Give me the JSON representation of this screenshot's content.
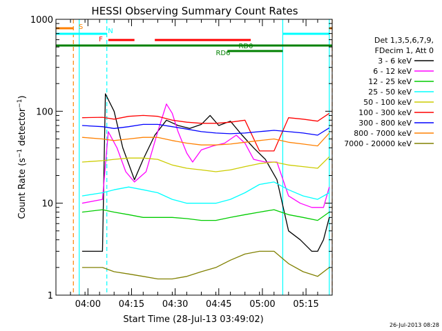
{
  "chart_data": {
    "type": "line",
    "title": "HESSI Observing Summary Count Rates",
    "xlabel": "Start Time (28-Jul-13 03:49:02)",
    "ylabel": "Count Rate (s⁻¹ detector⁻¹)",
    "ylabel_main": "Count Rate (s",
    "ylabel_sup1": "−1",
    "ylabel_mid": " detector",
    "ylabel_sup2": "−1",
    "ylabel_end": ")",
    "y_scale": "log",
    "ylim": [
      1,
      1000
    ],
    "xlim": [
      0,
      95
    ],
    "x_ticks": [
      {
        "t": 11,
        "label": "04:00"
      },
      {
        "t": 26,
        "label": "04:15"
      },
      {
        "t": 41,
        "label": "04:30"
      },
      {
        "t": 56,
        "label": "04:45"
      },
      {
        "t": 71,
        "label": "05:00"
      },
      {
        "t": 86,
        "label": "05:15"
      }
    ],
    "y_ticks": [
      {
        "v": 1,
        "label": "1"
      },
      {
        "v": 10,
        "label": "10"
      },
      {
        "v": 100,
        "label": "100"
      },
      {
        "v": 1000,
        "label": "1000"
      }
    ],
    "legend": {
      "header1": "Det 1,3,5,6,7,9,",
      "header2": "FDecim 1, Att 0"
    },
    "series": [
      {
        "name": "3 - 6 keV",
        "color": "#000000",
        "values": [
          [
            9,
            3
          ],
          [
            16,
            3
          ],
          [
            17,
            155
          ],
          [
            20,
            100
          ],
          [
            23,
            40
          ],
          [
            27,
            18
          ],
          [
            30,
            30
          ],
          [
            34,
            55
          ],
          [
            38,
            80
          ],
          [
            42,
            70
          ],
          [
            46,
            65
          ],
          [
            50,
            72
          ],
          [
            53,
            90
          ],
          [
            56,
            70
          ],
          [
            60,
            78
          ],
          [
            64,
            55
          ],
          [
            68,
            40
          ],
          [
            72,
            30
          ],
          [
            76,
            18
          ],
          [
            80,
            5
          ],
          [
            84,
            4
          ],
          [
            88,
            3
          ],
          [
            90,
            3
          ],
          [
            92,
            4
          ],
          [
            94,
            7
          ]
        ]
      },
      {
        "name": "6 - 12 keV",
        "color": "#ff00ff",
        "values": [
          [
            9,
            10
          ],
          [
            16,
            11
          ],
          [
            18,
            60
          ],
          [
            21,
            40
          ],
          [
            24,
            22
          ],
          [
            27,
            17
          ],
          [
            31,
            22
          ],
          [
            35,
            60
          ],
          [
            38,
            120
          ],
          [
            40,
            95
          ],
          [
            42,
            60
          ],
          [
            45,
            35
          ],
          [
            47,
            28
          ],
          [
            50,
            38
          ],
          [
            54,
            42
          ],
          [
            58,
            45
          ],
          [
            62,
            55
          ],
          [
            65,
            45
          ],
          [
            68,
            30
          ],
          [
            72,
            28
          ],
          [
            76,
            28
          ],
          [
            80,
            12
          ],
          [
            84,
            10
          ],
          [
            88,
            9
          ],
          [
            92,
            9
          ],
          [
            94,
            15
          ]
        ]
      },
      {
        "name": "12 - 25 keV",
        "color": "#00cc00",
        "values": [
          [
            9,
            8
          ],
          [
            16,
            8.5
          ],
          [
            20,
            8
          ],
          [
            25,
            7.5
          ],
          [
            30,
            7
          ],
          [
            35,
            7
          ],
          [
            40,
            7
          ],
          [
            45,
            6.8
          ],
          [
            50,
            6.5
          ],
          [
            55,
            6.5
          ],
          [
            60,
            7
          ],
          [
            65,
            7.5
          ],
          [
            70,
            8
          ],
          [
            75,
            8.5
          ],
          [
            80,
            7.5
          ],
          [
            85,
            7
          ],
          [
            90,
            6.5
          ],
          [
            94,
            8
          ]
        ]
      },
      {
        "name": "25 - 50 keV",
        "color": "#00ffff",
        "values": [
          [
            9,
            12
          ],
          [
            16,
            13
          ],
          [
            20,
            14
          ],
          [
            25,
            15
          ],
          [
            30,
            14
          ],
          [
            35,
            13
          ],
          [
            40,
            11
          ],
          [
            45,
            10
          ],
          [
            50,
            10
          ],
          [
            55,
            10
          ],
          [
            60,
            11
          ],
          [
            65,
            13
          ],
          [
            70,
            16
          ],
          [
            75,
            17
          ],
          [
            80,
            14
          ],
          [
            85,
            12
          ],
          [
            90,
            11
          ],
          [
            94,
            13
          ]
        ]
      },
      {
        "name": "50 - 100 keV",
        "color": "#cccc00",
        "values": [
          [
            9,
            28
          ],
          [
            16,
            29
          ],
          [
            20,
            30
          ],
          [
            25,
            31
          ],
          [
            30,
            31
          ],
          [
            35,
            30
          ],
          [
            40,
            26
          ],
          [
            45,
            24
          ],
          [
            50,
            23
          ],
          [
            55,
            22
          ],
          [
            60,
            23
          ],
          [
            65,
            25
          ],
          [
            70,
            27
          ],
          [
            75,
            28
          ],
          [
            80,
            26
          ],
          [
            85,
            25
          ],
          [
            90,
            24
          ],
          [
            94,
            32
          ]
        ]
      },
      {
        "name": "100 - 300 keV",
        "color": "#ff0000",
        "values": [
          [
            9,
            85
          ],
          [
            16,
            86
          ],
          [
            20,
            82
          ],
          [
            25,
            88
          ],
          [
            30,
            90
          ],
          [
            35,
            88
          ],
          [
            40,
            80
          ],
          [
            45,
            76
          ],
          [
            50,
            74
          ],
          [
            55,
            74
          ],
          [
            60,
            76
          ],
          [
            65,
            80
          ],
          [
            70,
            37
          ],
          [
            75,
            37
          ],
          [
            80,
            85
          ],
          [
            85,
            82
          ],
          [
            90,
            78
          ],
          [
            94,
            95
          ]
        ]
      },
      {
        "name": "300 - 800 keV",
        "color": "#0000ff",
        "values": [
          [
            9,
            70
          ],
          [
            16,
            68
          ],
          [
            20,
            65
          ],
          [
            25,
            68
          ],
          [
            30,
            72
          ],
          [
            35,
            72
          ],
          [
            40,
            68
          ],
          [
            45,
            64
          ],
          [
            50,
            60
          ],
          [
            55,
            58
          ],
          [
            60,
            57
          ],
          [
            65,
            58
          ],
          [
            70,
            60
          ],
          [
            75,
            62
          ],
          [
            80,
            60
          ],
          [
            85,
            58
          ],
          [
            90,
            55
          ],
          [
            94,
            66
          ]
        ]
      },
      {
        "name": "800 - 7000 keV",
        "color": "#ff8000",
        "values": [
          [
            9,
            52
          ],
          [
            16,
            50
          ],
          [
            20,
            48
          ],
          [
            25,
            50
          ],
          [
            30,
            52
          ],
          [
            35,
            52
          ],
          [
            40,
            48
          ],
          [
            45,
            45
          ],
          [
            50,
            43
          ],
          [
            55,
            43
          ],
          [
            60,
            44
          ],
          [
            65,
            46
          ],
          [
            70,
            48
          ],
          [
            75,
            50
          ],
          [
            80,
            46
          ],
          [
            85,
            44
          ],
          [
            90,
            42
          ],
          [
            94,
            58
          ]
        ]
      },
      {
        "name": "7000 - 20000 keV",
        "color": "#808000",
        "values": [
          [
            9,
            2
          ],
          [
            16,
            2
          ],
          [
            20,
            1.8
          ],
          [
            25,
            1.7
          ],
          [
            30,
            1.6
          ],
          [
            35,
            1.5
          ],
          [
            40,
            1.5
          ],
          [
            45,
            1.6
          ],
          [
            50,
            1.8
          ],
          [
            55,
            2
          ],
          [
            60,
            2.4
          ],
          [
            65,
            2.8
          ],
          [
            70,
            3
          ],
          [
            75,
            3
          ],
          [
            80,
            2.2
          ],
          [
            85,
            1.8
          ],
          [
            90,
            1.6
          ],
          [
            94,
            2
          ]
        ]
      }
    ],
    "state_bars": [
      {
        "label": "S",
        "color": "#ff8000",
        "segments": [
          [
            0,
            6
          ],
          [
            94,
            95
          ]
        ]
      },
      {
        "label": "N",
        "color": "#00ffff",
        "segments": [
          [
            0,
            17.5
          ],
          [
            78,
            94
          ]
        ]
      },
      {
        "label": "F",
        "color": "#ff0000",
        "segments": [
          [
            18,
            27
          ],
          [
            34,
            67
          ]
        ]
      },
      {
        "label": "RD0",
        "color": "#008000",
        "segments": [
          [
            0,
            95
          ]
        ]
      },
      {
        "label": "RD6",
        "color": "#008000",
        "segments": [
          [
            59,
            78
          ]
        ]
      }
    ],
    "vlines": [
      {
        "t": 6,
        "color": "#ff8000",
        "dashed": true
      },
      {
        "t": 8,
        "color": "#00ffff",
        "dashed": false
      },
      {
        "t": 17.5,
        "color": "#00ffff",
        "dashed": true
      },
      {
        "t": 78,
        "color": "#00ffff",
        "dashed": false
      },
      {
        "t": 94,
        "color": "#00ffff",
        "dashed": false
      },
      {
        "t": 95,
        "color": "#ff8000",
        "dashed": true
      }
    ],
    "footer_date": "26-Jul-2013 08:28"
  }
}
